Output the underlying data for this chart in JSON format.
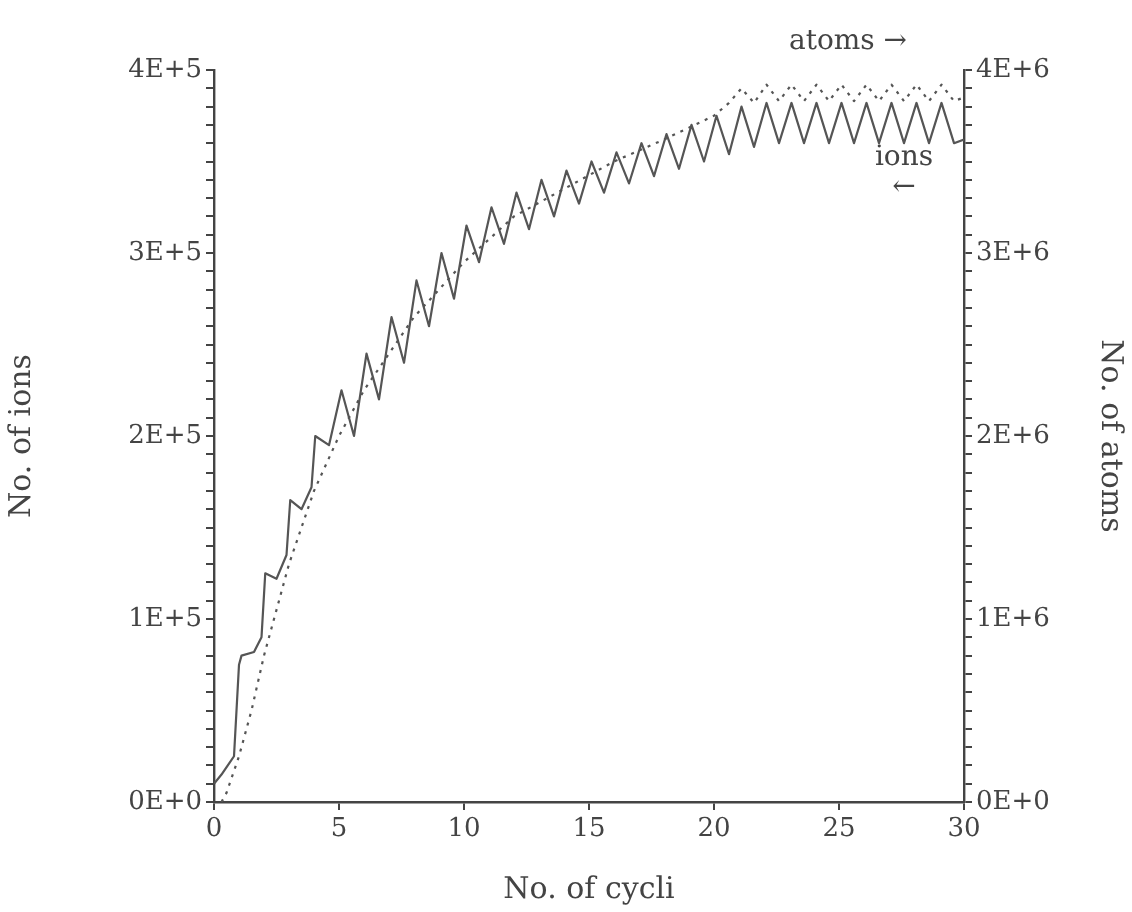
{
  "chart_data": {
    "type": "line",
    "xlabel": "No. of cycli",
    "ylabel": "No. of ions",
    "y2label": "No. of atoms",
    "xlim": [
      0,
      30
    ],
    "xticks": [
      0,
      5,
      10,
      15,
      20,
      25,
      30
    ],
    "ylim": [
      0,
      400000
    ],
    "yticks": [
      {
        "value": 0,
        "label": "0E+0"
      },
      {
        "value": 10000,
        "label": null
      },
      {
        "value": 20000,
        "label": null
      },
      {
        "value": 30000,
        "label": null
      },
      {
        "value": 40000,
        "label": null
      },
      {
        "value": 50000,
        "label": null
      },
      {
        "value": 60000,
        "label": null
      },
      {
        "value": 70000,
        "label": null
      },
      {
        "value": 80000,
        "label": null
      },
      {
        "value": 90000,
        "label": null
      },
      {
        "value": 100000,
        "label": "1E+5"
      },
      {
        "value": 110000,
        "label": null
      },
      {
        "value": 120000,
        "label": null
      },
      {
        "value": 130000,
        "label": null
      },
      {
        "value": 140000,
        "label": null
      },
      {
        "value": 150000,
        "label": null
      },
      {
        "value": 160000,
        "label": null
      },
      {
        "value": 170000,
        "label": null
      },
      {
        "value": 180000,
        "label": null
      },
      {
        "value": 190000,
        "label": null
      },
      {
        "value": 200000,
        "label": "2E+5"
      },
      {
        "value": 210000,
        "label": null
      },
      {
        "value": 220000,
        "label": null
      },
      {
        "value": 230000,
        "label": null
      },
      {
        "value": 240000,
        "label": null
      },
      {
        "value": 250000,
        "label": null
      },
      {
        "value": 260000,
        "label": null
      },
      {
        "value": 270000,
        "label": null
      },
      {
        "value": 280000,
        "label": null
      },
      {
        "value": 290000,
        "label": null
      },
      {
        "value": 300000,
        "label": "3E+5"
      },
      {
        "value": 310000,
        "label": null
      },
      {
        "value": 320000,
        "label": null
      },
      {
        "value": 330000,
        "label": null
      },
      {
        "value": 340000,
        "label": null
      },
      {
        "value": 350000,
        "label": null
      },
      {
        "value": 360000,
        "label": null
      },
      {
        "value": 370000,
        "label": null
      },
      {
        "value": 380000,
        "label": null
      },
      {
        "value": 390000,
        "label": null
      },
      {
        "value": 400000,
        "label": "4E+5"
      }
    ],
    "y2lim": [
      0,
      4000000
    ],
    "y2ticks": [
      {
        "value": 0,
        "label": "0E+0"
      },
      {
        "value": 100000,
        "label": null
      },
      {
        "value": 200000,
        "label": null
      },
      {
        "value": 300000,
        "label": null
      },
      {
        "value": 400000,
        "label": null
      },
      {
        "value": 500000,
        "label": null
      },
      {
        "value": 600000,
        "label": null
      },
      {
        "value": 700000,
        "label": null
      },
      {
        "value": 800000,
        "label": null
      },
      {
        "value": 900000,
        "label": null
      },
      {
        "value": 1000000,
        "label": "1E+6"
      },
      {
        "value": 1100000,
        "label": null
      },
      {
        "value": 1200000,
        "label": null
      },
      {
        "value": 1300000,
        "label": null
      },
      {
        "value": 1400000,
        "label": null
      },
      {
        "value": 1500000,
        "label": null
      },
      {
        "value": 1600000,
        "label": null
      },
      {
        "value": 1700000,
        "label": null
      },
      {
        "value": 1800000,
        "label": null
      },
      {
        "value": 1900000,
        "label": null
      },
      {
        "value": 2000000,
        "label": "2E+6"
      },
      {
        "value": 2100000,
        "label": null
      },
      {
        "value": 2200000,
        "label": null
      },
      {
        "value": 2300000,
        "label": null
      },
      {
        "value": 2400000,
        "label": null
      },
      {
        "value": 2500000,
        "label": null
      },
      {
        "value": 2600000,
        "label": null
      },
      {
        "value": 2700000,
        "label": null
      },
      {
        "value": 2800000,
        "label": null
      },
      {
        "value": 2900000,
        "label": null
      },
      {
        "value": 3000000,
        "label": "3E+6"
      },
      {
        "value": 3100000,
        "label": null
      },
      {
        "value": 3200000,
        "label": null
      },
      {
        "value": 3300000,
        "label": null
      },
      {
        "value": 3400000,
        "label": null
      },
      {
        "value": 3500000,
        "label": null
      },
      {
        "value": 3600000,
        "label": null
      },
      {
        "value": 3700000,
        "label": null
      },
      {
        "value": 3800000,
        "label": null
      },
      {
        "value": 3900000,
        "label": null
      },
      {
        "value": 4000000,
        "label": "4E+6"
      }
    ],
    "grid": false,
    "legend": false,
    "marker": "none",
    "annotations": [
      "atoms →",
      "ions ←"
    ],
    "series": [
      {
        "color": "#555555",
        "line_style": "solid",
        "x": [
          0,
          0.3,
          0.8,
          1.0,
          1.1,
          1.6,
          1.9,
          2.05,
          2.5,
          2.9,
          3.05,
          3.5,
          3.9,
          4.05,
          4.6,
          5.1,
          5.6,
          6.1,
          6.6,
          7.1,
          7.6,
          8.1,
          8.6,
          9.1,
          9.6,
          10.1,
          10.6,
          11.1,
          11.6,
          12.1,
          12.6,
          13.1,
          13.6,
          14.1,
          14.6,
          15.1,
          15.6,
          16.1,
          16.6,
          17.1,
          17.6,
          18.1,
          18.6,
          19.1,
          19.6,
          20.1,
          20.6,
          21.1,
          21.6,
          22.1,
          22.6,
          23.1,
          23.6,
          24.1,
          24.6,
          25.1,
          25.6,
          26.1,
          26.6,
          27.1,
          27.6,
          28.1,
          28.6,
          29.1,
          29.6,
          30
        ],
        "values": [
          10000,
          15000,
          25000,
          75000,
          80000,
          82000,
          90000,
          125000,
          122000,
          135000,
          165000,
          160000,
          172000,
          200000,
          195000,
          225000,
          200000,
          245000,
          220000,
          265000,
          240000,
          285000,
          260000,
          300000,
          275000,
          315000,
          295000,
          325000,
          305000,
          333000,
          313000,
          340000,
          320000,
          345000,
          327000,
          350000,
          333000,
          355000,
          338000,
          360000,
          342000,
          365000,
          346000,
          370000,
          350000,
          375000,
          354000,
          380000,
          358000,
          382000,
          360000,
          382000,
          360000,
          382000,
          360000,
          382000,
          360000,
          382000,
          360000,
          382000,
          360000,
          382000,
          360000,
          382000,
          360000,
          362000
        ]
      },
      {
        "color": "#555555",
        "line_style": "dotted",
        "axis": "y2",
        "x": [
          0.3,
          0.5,
          1,
          1.5,
          2,
          2.5,
          3,
          4,
          5,
          6,
          7,
          8,
          9,
          10,
          12,
          14,
          16,
          18,
          20,
          20.6,
          21.1,
          21.6,
          22.1,
          22.6,
          23.1,
          23.6,
          24.1,
          24.6,
          25.1,
          25.6,
          26.1,
          26.6,
          27.1,
          27.6,
          28.1,
          28.6,
          29.1,
          29.6,
          30
        ],
        "values": [
          0,
          50000,
          250000,
          500000,
          800000,
          1050000,
          1300000,
          1700000,
          2000000,
          2250000,
          2450000,
          2650000,
          2800000,
          2950000,
          3200000,
          3350000,
          3500000,
          3620000,
          3750000,
          3820000,
          3900000,
          3820000,
          3920000,
          3830000,
          3920000,
          3830000,
          3920000,
          3830000,
          3920000,
          3830000,
          3920000,
          3830000,
          3920000,
          3830000,
          3920000,
          3830000,
          3920000,
          3830000,
          3850000
        ]
      }
    ]
  }
}
